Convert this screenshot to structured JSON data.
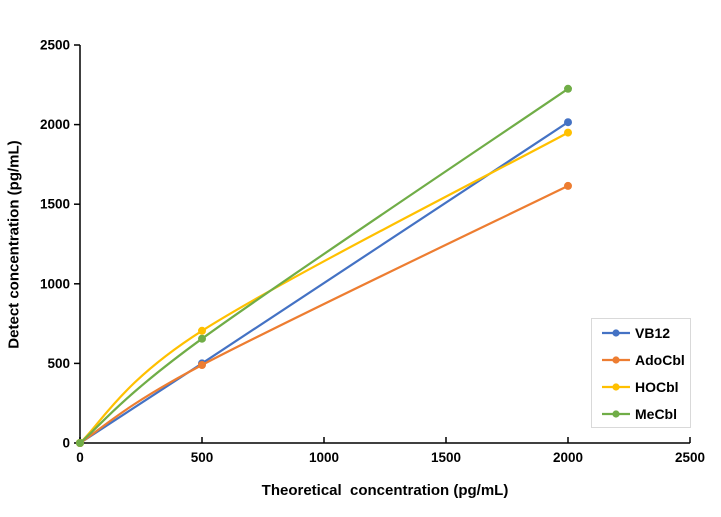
{
  "figure": {
    "background": "#ffffff"
  },
  "chart_data": {
    "type": "line",
    "title": "",
    "xlabel": "Theoretical  concentration (pg/mL)",
    "ylabel": "Detect concentration (pg/mL)",
    "x": [
      0,
      500,
      2000
    ],
    "series": [
      {
        "name": "VB12",
        "color": "#4472C4",
        "values": [
          0,
          500,
          2015
        ]
      },
      {
        "name": "AdoCbl",
        "color": "#ED7D31",
        "values": [
          0,
          490,
          1615
        ]
      },
      {
        "name": "HOCbl",
        "color": "#FFC000",
        "values": [
          0,
          705,
          1950
        ]
      },
      {
        "name": "MeCbl",
        "color": "#70AD47",
        "values": [
          0,
          655,
          2225
        ]
      }
    ],
    "xlim": [
      0,
      2500
    ],
    "ylim": [
      0,
      2500
    ],
    "xticks": [
      0,
      500,
      1000,
      1500,
      2000,
      2500
    ],
    "yticks": [
      0,
      500,
      1000,
      1500,
      2000,
      2500
    ],
    "grid": false,
    "line_style": "smooth",
    "marker": "circle",
    "axis_color": "#000000",
    "text_color": "#000000",
    "legend": {
      "position": "right-middle",
      "border_color": "#d9d9d9",
      "entries": [
        "VB12",
        "AdoCbl",
        "HOCbl",
        "MeCbl"
      ]
    }
  }
}
